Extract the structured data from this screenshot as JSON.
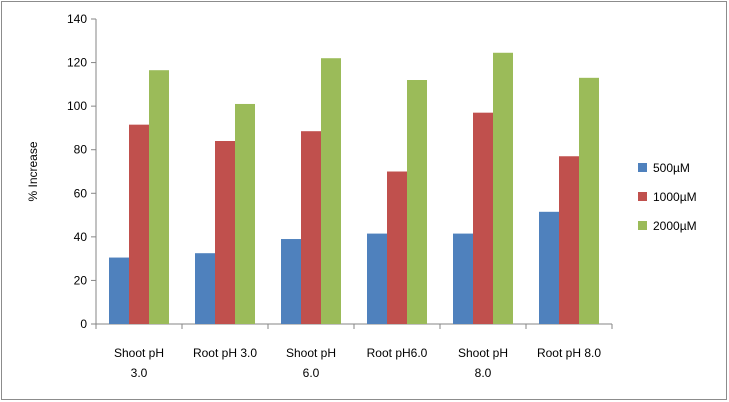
{
  "chart_data": {
    "type": "bar",
    "title": "",
    "xlabel": "",
    "ylabel": "% Increase",
    "ylim": [
      0,
      140
    ],
    "yticks": [
      0,
      20,
      40,
      60,
      80,
      100,
      120,
      140
    ],
    "grid": false,
    "legend_position": "right",
    "categories": [
      [
        "Shoot pH",
        "3.0"
      ],
      [
        "Root pH 3.0"
      ],
      [
        "Shoot pH",
        "6.0"
      ],
      [
        "Root pH6.0"
      ],
      [
        "Shoot pH",
        "8.0"
      ],
      [
        "Root pH 8.0"
      ]
    ],
    "series": [
      {
        "name": "500µM",
        "color": "#4f81bd",
        "values": [
          30.5,
          32.5,
          39,
          41.5,
          41.5,
          51.5
        ]
      },
      {
        "name": "1000µM",
        "color": "#c0504d",
        "values": [
          91.5,
          84,
          88.5,
          70,
          97,
          77
        ]
      },
      {
        "name": "2000µM",
        "color": "#9bbb59",
        "values": [
          116.5,
          101,
          122,
          112,
          124.5,
          113
        ]
      }
    ]
  }
}
